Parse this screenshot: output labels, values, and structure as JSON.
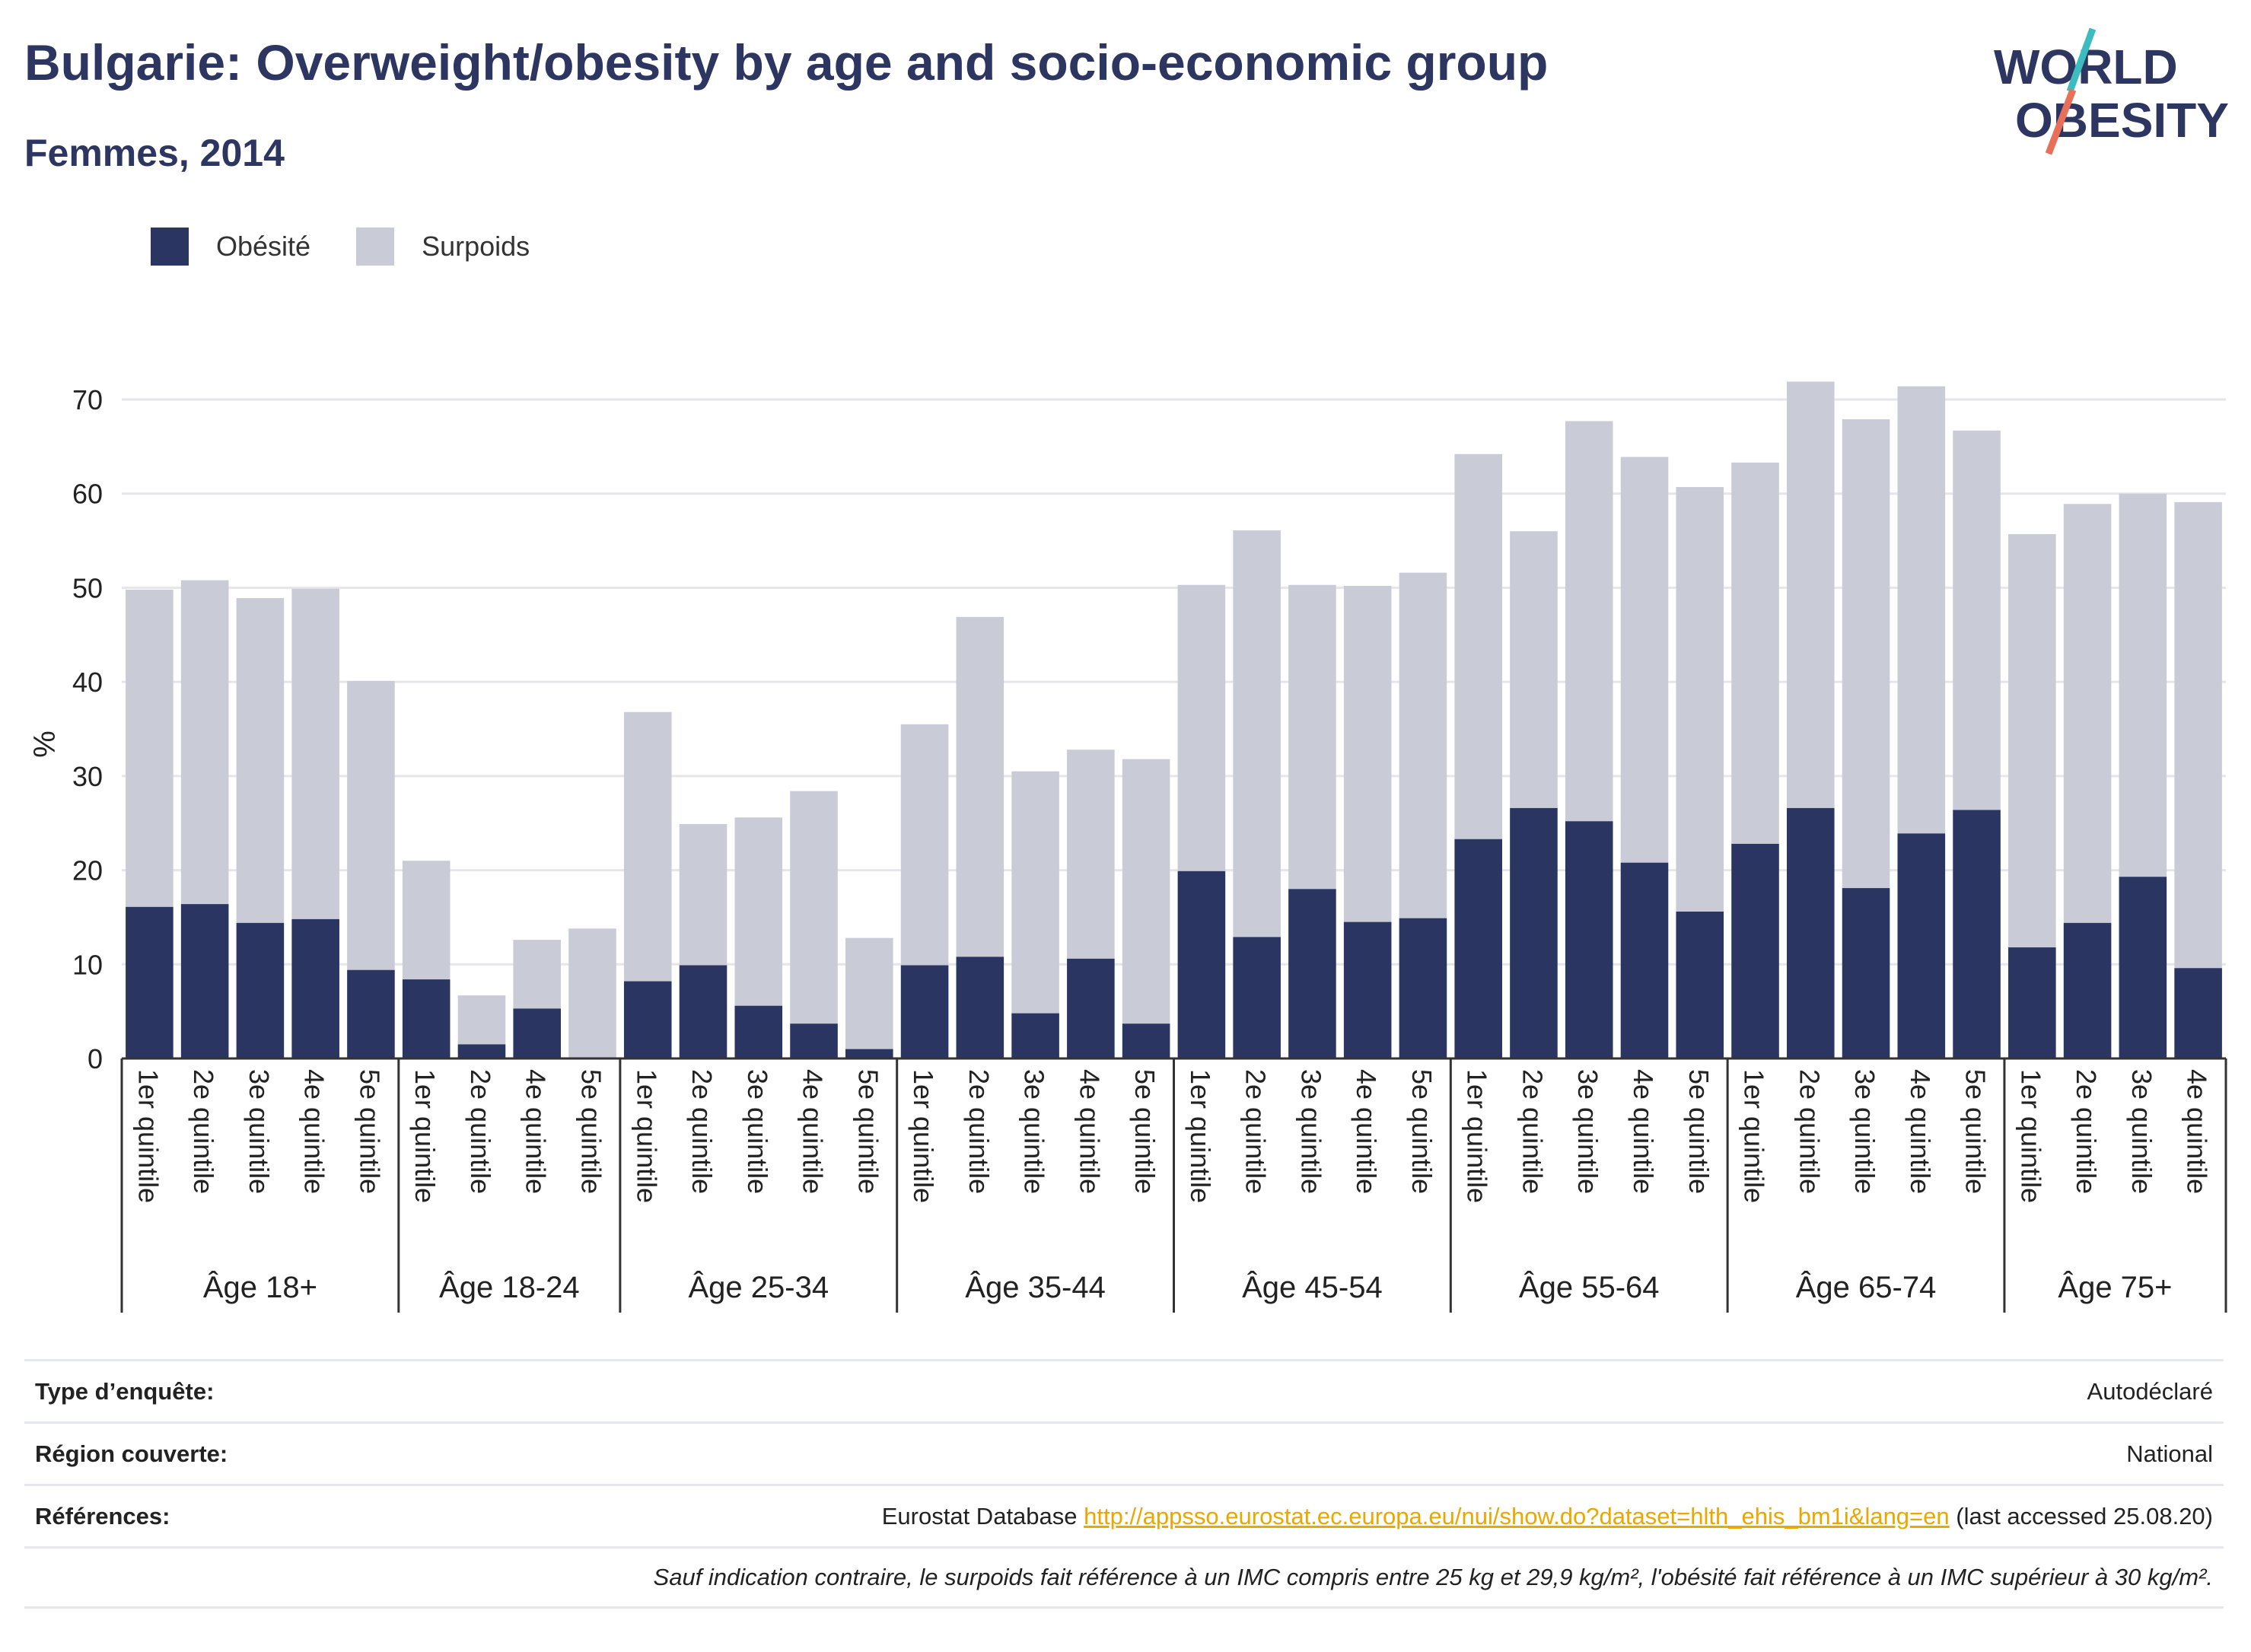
{
  "title": "Bulgarie: Overweight/obesity by age and socio-economic group",
  "subtitle": "Femmes, 2014",
  "logo": {
    "line1": "WORLD",
    "line2": "OBESITY"
  },
  "colors": {
    "obesity": "#2b3562",
    "overweight": "#c9cbd7",
    "grid": "#e6e6ea",
    "axis": "#333333",
    "title": "#2d3561",
    "link": "#e8a800"
  },
  "chart_data": {
    "type": "bar",
    "stacked": true,
    "ylabel": "%",
    "ylim": [
      0,
      75
    ],
    "yticks": [
      0,
      10,
      20,
      30,
      40,
      50,
      60,
      70
    ],
    "grid": true,
    "legend_position": "top-left",
    "series": [
      {
        "name": "Obésité",
        "key": "obesity"
      },
      {
        "name": "Surpoids",
        "key": "overweight"
      }
    ],
    "groups": [
      {
        "label": "Âge 18+",
        "bars": [
          {
            "category": "1er quintile",
            "obesity": 16.1,
            "total": 49.8
          },
          {
            "category": "2e quintile",
            "obesity": 16.4,
            "total": 50.8
          },
          {
            "category": "3e quintile",
            "obesity": 14.4,
            "total": 48.9
          },
          {
            "category": "4e quintile",
            "obesity": 14.8,
            "total": 49.9
          },
          {
            "category": "5e quintile",
            "obesity": 9.4,
            "total": 40.1
          }
        ]
      },
      {
        "label": "Âge 18-24",
        "bars": [
          {
            "category": "1er quintile",
            "obesity": 8.4,
            "total": 21.0
          },
          {
            "category": "2e quintile",
            "obesity": 1.5,
            "total": 6.7
          },
          {
            "category": "4e quintile",
            "obesity": 5.3,
            "total": 12.6
          },
          {
            "category": "5e quintile",
            "obesity": 0.0,
            "total": 13.8
          }
        ]
      },
      {
        "label": "Âge 25-34",
        "bars": [
          {
            "category": "1er quintile",
            "obesity": 8.2,
            "total": 36.8
          },
          {
            "category": "2e quintile",
            "obesity": 9.9,
            "total": 24.9
          },
          {
            "category": "3e quintile",
            "obesity": 5.6,
            "total": 25.6
          },
          {
            "category": "4e quintile",
            "obesity": 3.7,
            "total": 28.4
          },
          {
            "category": "5e quintile",
            "obesity": 1.0,
            "total": 12.8
          }
        ]
      },
      {
        "label": "Âge 35-44",
        "bars": [
          {
            "category": "1er quintile",
            "obesity": 9.9,
            "total": 35.5
          },
          {
            "category": "2e quintile",
            "obesity": 10.8,
            "total": 46.9
          },
          {
            "category": "3e quintile",
            "obesity": 4.8,
            "total": 30.5
          },
          {
            "category": "4e quintile",
            "obesity": 10.6,
            "total": 32.8
          },
          {
            "category": "5e quintile",
            "obesity": 3.7,
            "total": 31.8
          }
        ]
      },
      {
        "label": "Âge 45-54",
        "bars": [
          {
            "category": "1er quintile",
            "obesity": 19.9,
            "total": 50.3
          },
          {
            "category": "2e quintile",
            "obesity": 12.9,
            "total": 56.1
          },
          {
            "category": "3e quintile",
            "obesity": 18.0,
            "total": 50.3
          },
          {
            "category": "4e quintile",
            "obesity": 14.5,
            "total": 50.2
          },
          {
            "category": "5e quintile",
            "obesity": 14.9,
            "total": 51.6
          }
        ]
      },
      {
        "label": "Âge 55-64",
        "bars": [
          {
            "category": "1er quintile",
            "obesity": 23.3,
            "total": 64.2
          },
          {
            "category": "2e quintile",
            "obesity": 26.6,
            "total": 56.0
          },
          {
            "category": "3e quintile",
            "obesity": 25.2,
            "total": 67.7
          },
          {
            "category": "4e quintile",
            "obesity": 20.8,
            "total": 63.9
          },
          {
            "category": "5e quintile",
            "obesity": 15.6,
            "total": 60.7
          }
        ]
      },
      {
        "label": "Âge 65-74",
        "bars": [
          {
            "category": "1er quintile",
            "obesity": 22.8,
            "total": 63.3
          },
          {
            "category": "2e quintile",
            "obesity": 26.6,
            "total": 71.9
          },
          {
            "category": "3e quintile",
            "obesity": 18.1,
            "total": 67.9
          },
          {
            "category": "4e quintile",
            "obesity": 23.9,
            "total": 71.4
          },
          {
            "category": "5e quintile",
            "obesity": 26.4,
            "total": 66.7
          }
        ]
      },
      {
        "label": "Âge 75+",
        "bars": [
          {
            "category": "1er quintile",
            "obesity": 11.8,
            "total": 55.7
          },
          {
            "category": "2e quintile",
            "obesity": 14.4,
            "total": 58.9
          },
          {
            "category": "3e quintile",
            "obesity": 19.3,
            "total": 60.0
          },
          {
            "category": "4e quintile",
            "obesity": 9.6,
            "total": 59.1
          }
        ]
      }
    ]
  },
  "footer": {
    "survey_type_label": "Type d’enquête:",
    "survey_type_value": "Autodéclaré",
    "region_label": "Région couverte:",
    "region_value": "National",
    "references_label": "Références:",
    "references_prefix": "Eurostat Database ",
    "references_link": "http://appsso.eurostat.ec.europa.eu/nui/show.do?dataset=hlth_ehis_bm1i&lang=en",
    "references_suffix": " (last accessed 25.08.20)",
    "note": "Sauf indication contraire, le surpoids fait référence à un IMC compris entre 25 kg et 29,9 kg/m², l'obésité fait référence à un IMC supérieur à 30 kg/m²."
  }
}
